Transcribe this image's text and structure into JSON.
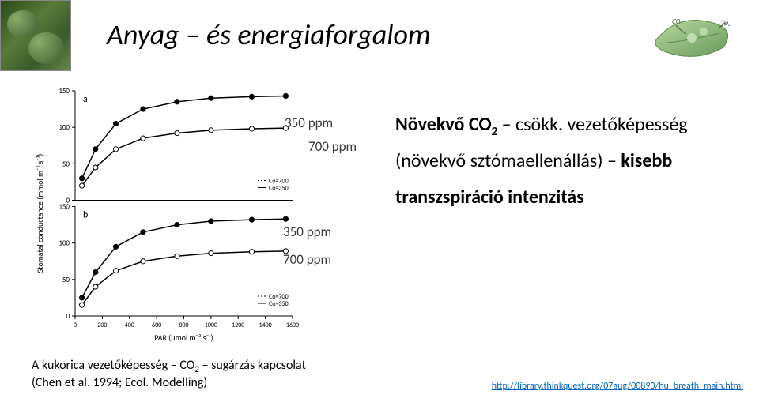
{
  "title": "Anyag – és energiaforgalom",
  "chart_labels": {
    "a_top": "350 ppm",
    "a_bottom": "700 ppm",
    "b_top": "350 ppm",
    "b_bottom": "700 ppm"
  },
  "right_block": {
    "line1_bold": "Növekvő CO",
    "line1_sub": "2",
    "line1_rest": " – csökk. vezetőképesség",
    "line2_plain": "(növekvő sztómaellenállás) – ",
    "line2_bold": "kisebb",
    "line3_bold": "transzspiráció intenzitás"
  },
  "caption": {
    "line1_a": "A kukorica vezetőképesség – CO",
    "line1_sub": "2",
    "line1_b": " – sugárzás kapcsolat",
    "line2": "(Chen et al. 1994; Ecol. Modelling)"
  },
  "url": "http://library.thinkquest.org/07aug/00890/hu_breath_main.html",
  "chart": {
    "type": "line",
    "panels": [
      "a",
      "b"
    ],
    "x_axis": {
      "label": "PAR (μmol m⁻² s⁻¹)",
      "min": 0,
      "max": 1600,
      "ticks": [
        0,
        200,
        400,
        600,
        800,
        1000,
        1200,
        1400,
        1600
      ],
      "fontsize": 10
    },
    "y_axis": {
      "label": "Stomatal conductance (mmol m⁻¹ s⁻¹)",
      "fontsize": 10
    },
    "panel_a": {
      "ylim": [
        0,
        150
      ],
      "yticks": [
        0,
        50,
        100,
        150
      ],
      "series": [
        {
          "name": "Co=350",
          "marker": "circle-filled",
          "color": "#000000",
          "x": [
            50,
            150,
            300,
            500,
            750,
            1000,
            1300,
            1550
          ],
          "y": [
            30,
            70,
            105,
            125,
            135,
            140,
            142,
            143
          ]
        },
        {
          "name": "Co=700",
          "marker": "circle-open",
          "color": "#000000",
          "x": [
            50,
            150,
            300,
            500,
            750,
            1000,
            1300,
            1550
          ],
          "y": [
            20,
            45,
            70,
            85,
            92,
            96,
            98,
            99
          ]
        }
      ],
      "legend": {
        "items": [
          "Co=700",
          "Co=350"
        ],
        "position": "right",
        "fontsize": 8
      }
    },
    "panel_b": {
      "ylim": [
        0,
        150
      ],
      "yticks": [
        0,
        50,
        100,
        150
      ],
      "series": [
        {
          "name": "Co=350",
          "marker": "circle-filled",
          "color": "#000000",
          "x": [
            50,
            150,
            300,
            500,
            750,
            1000,
            1300,
            1550
          ],
          "y": [
            25,
            60,
            95,
            115,
            125,
            130,
            132,
            133
          ]
        },
        {
          "name": "Co=700",
          "marker": "circle-open",
          "color": "#000000",
          "x": [
            50,
            150,
            300,
            500,
            750,
            1000,
            1300,
            1550
          ],
          "y": [
            15,
            40,
            62,
            75,
            82,
            86,
            88,
            89
          ]
        }
      ],
      "legend": {
        "items": [
          "Co=700",
          "Co=350"
        ],
        "position": "right",
        "fontsize": 8
      }
    },
    "line_width": 1.5,
    "marker_size": 4,
    "background_color": "#ffffff",
    "axis_color": "#000000"
  },
  "leaf_icon": {
    "fill": "#8fb97a",
    "fill_dark": "#5a8a4a",
    "text_co2": "CO₂",
    "text_o2": "O₂",
    "text_color": "#3a5a3a"
  }
}
